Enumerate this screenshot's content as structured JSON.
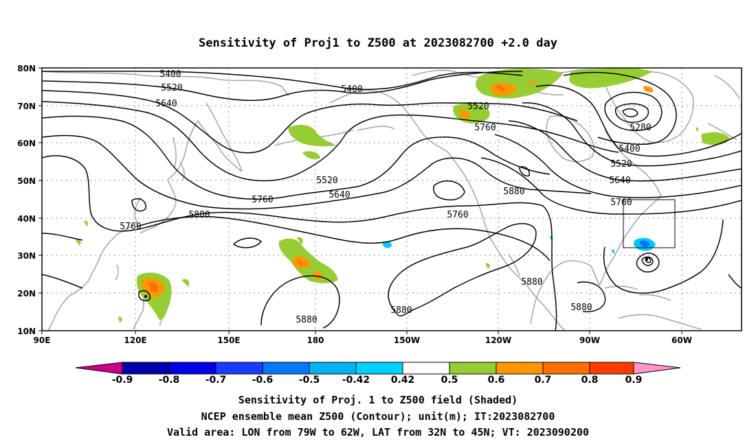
{
  "title": "Sensitivity of Proj1 to Z500 at 2023082700 +2.0 day",
  "map": {
    "lat_labels": [
      "80N",
      "70N",
      "60N",
      "50N",
      "40N",
      "30N",
      "20N",
      "10N"
    ],
    "lon_labels": [
      "90E",
      "120E",
      "150E",
      "180",
      "150W",
      "120W",
      "90W",
      "60W"
    ],
    "lon_range_deg": [
      90,
      315
    ],
    "lat_range_deg": [
      10,
      80
    ],
    "grid": "dotted",
    "coastline_color": "#a8a8a8",
    "contour_color": "#000000",
    "contour_labels": [
      {
        "text": "5400"
      },
      {
        "text": "5520"
      },
      {
        "text": "5640"
      },
      {
        "text": "5400"
      },
      {
        "text": "5520"
      },
      {
        "text": "5760"
      },
      {
        "text": "5280"
      },
      {
        "text": "5400"
      },
      {
        "text": "5520"
      },
      {
        "text": "5640"
      },
      {
        "text": "5760"
      },
      {
        "text": "5520"
      },
      {
        "text": "5640"
      },
      {
        "text": "5760"
      },
      {
        "text": "5880"
      },
      {
        "text": "5760"
      },
      {
        "text": "5880"
      },
      {
        "text": "5760"
      },
      {
        "text": "5880"
      },
      {
        "text": "5880"
      },
      {
        "text": "5880"
      },
      {
        "text": "5880"
      }
    ],
    "valid_box": {
      "lon": [
        281,
        298
      ],
      "lat": [
        32,
        45
      ]
    }
  },
  "colorbar": {
    "labels": [
      "-0.9",
      "-0.8",
      "-0.7",
      "-0.6",
      "-0.5",
      "-0.42",
      "0.42",
      "0.5",
      "0.6",
      "0.7",
      "0.8",
      "0.9"
    ],
    "colors": [
      "#c8008c",
      "#0000a8",
      "#0000e6",
      "#1a3cff",
      "#0078ff",
      "#00b4f0",
      "#00d2ff",
      "#ffffff",
      "#96cd32",
      "#ff9600",
      "#ff6e00",
      "#ff3c00",
      "#ff0000",
      "#ff96c8"
    ]
  },
  "footer": {
    "line1": "Sensitivity of Proj. 1 to Z500 field (Shaded)",
    "line2": "NCEP ensemble mean Z500 (Contour); unit(m); IT:2023082700",
    "line3": "Valid area: LON from 79W to 62W, LAT from 32N to 45N; VT: 2023090200"
  }
}
